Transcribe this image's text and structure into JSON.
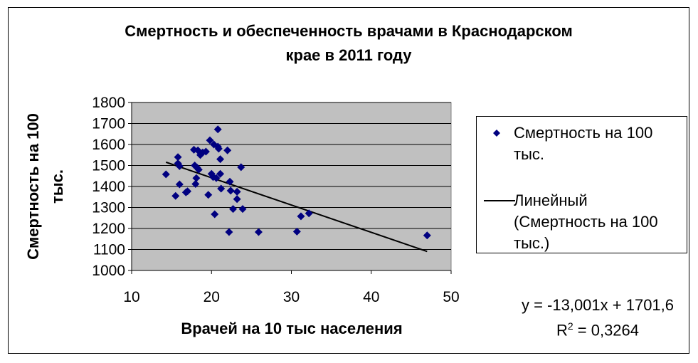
{
  "chart_data": {
    "type": "scatter",
    "title_line1": "Смертность и обеспеченность врачами в Краснодарском",
    "title_line2": "крае в 2011 году",
    "xlabel": "Врачей на 10 тыс населения",
    "ylabel_line1": "Смертность на 100",
    "ylabel_line2": "тыс.",
    "xlim": [
      10,
      50
    ],
    "ylim": [
      1000,
      1800
    ],
    "x_ticks": [
      10,
      20,
      30,
      40,
      50
    ],
    "y_ticks": [
      1000,
      1100,
      1200,
      1300,
      1400,
      1500,
      1600,
      1700,
      1800
    ],
    "series": [
      {
        "name_line1": "Смертность на 100",
        "name_line2": "тыс.",
        "color": "#000080",
        "marker": "diamond",
        "points": [
          [
            14.3,
            1458
          ],
          [
            15.5,
            1355
          ],
          [
            15.8,
            1540
          ],
          [
            15.8,
            1510
          ],
          [
            16.0,
            1497
          ],
          [
            16.0,
            1410
          ],
          [
            16.8,
            1372
          ],
          [
            17.0,
            1377
          ],
          [
            17.8,
            1575
          ],
          [
            17.9,
            1500
          ],
          [
            18.0,
            1412
          ],
          [
            18.1,
            1440
          ],
          [
            18.2,
            1490
          ],
          [
            18.3,
            1572
          ],
          [
            18.4,
            1480
          ],
          [
            18.6,
            1550
          ],
          [
            18.9,
            1562
          ],
          [
            19.3,
            1566
          ],
          [
            19.6,
            1360
          ],
          [
            19.8,
            1620
          ],
          [
            20.0,
            1460
          ],
          [
            20.2,
            1445
          ],
          [
            20.3,
            1600
          ],
          [
            20.4,
            1268
          ],
          [
            20.6,
            1440
          ],
          [
            20.8,
            1672
          ],
          [
            20.8,
            1590
          ],
          [
            20.9,
            1580
          ],
          [
            21.1,
            1530
          ],
          [
            21.1,
            1460
          ],
          [
            21.2,
            1390
          ],
          [
            22.0,
            1572
          ],
          [
            22.2,
            1183
          ],
          [
            22.3,
            1423
          ],
          [
            22.4,
            1380
          ],
          [
            22.7,
            1293
          ],
          [
            23.2,
            1375
          ],
          [
            23.2,
            1340
          ],
          [
            23.7,
            1492
          ],
          [
            23.9,
            1293
          ],
          [
            25.9,
            1183
          ],
          [
            30.7,
            1185
          ],
          [
            31.2,
            1258
          ],
          [
            32.2,
            1272
          ],
          [
            47.0,
            1167
          ]
        ]
      },
      {
        "name_line1": "Линейный",
        "name_line2": "(Смертность на 100",
        "name_line3": "тыс.)",
        "color": "#000000",
        "type": "linear-trendline",
        "slope": -13.001,
        "intercept": 1701.6,
        "x_range": [
          14.3,
          47.0
        ]
      }
    ],
    "equation": "y = -13,001x + 1701,6",
    "r2_prefix": "R",
    "r2_sup": "2",
    "r2_value": " = 0,3264",
    "legend_position": "right",
    "grid": "horizontal",
    "plot_background": "#c0c0c0"
  }
}
